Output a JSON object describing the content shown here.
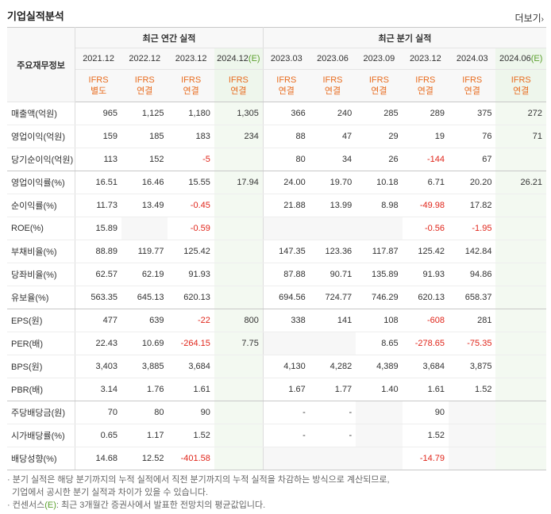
{
  "header": {
    "title": "기업실적분석",
    "more_label": "더보기"
  },
  "table": {
    "row_header_label": "주요재무정보",
    "group_annual": "최근 연간 실적",
    "group_quarter": "최근 분기 실적",
    "periods": [
      "2021.12",
      "2022.12",
      "2023.12",
      "2024.12",
      "2023.03",
      "2023.06",
      "2023.09",
      "2023.12",
      "2024.03",
      "2024.06"
    ],
    "estimate_mark": "(E)",
    "ifrs_label": "IFRS",
    "basis": [
      "별도",
      "연결",
      "연결",
      "연결",
      "연결",
      "연결",
      "연결",
      "연결",
      "연결",
      "연결"
    ],
    "rows": [
      {
        "label": "매출액(억원)",
        "values": [
          "965",
          "1,125",
          "1,180",
          "1,305",
          "366",
          "240",
          "285",
          "289",
          "375",
          "272"
        ]
      },
      {
        "label": "영업이익(억원)",
        "values": [
          "159",
          "185",
          "183",
          "234",
          "88",
          "47",
          "29",
          "19",
          "76",
          "71"
        ]
      },
      {
        "label": "당기순이익(억원)",
        "values": [
          "113",
          "152",
          "-5",
          "",
          "80",
          "34",
          "26",
          "-144",
          "67",
          ""
        ]
      },
      {
        "label": "영업이익률(%)",
        "values": [
          "16.51",
          "16.46",
          "15.55",
          "17.94",
          "24.00",
          "19.70",
          "10.18",
          "6.71",
          "20.20",
          "26.21"
        ]
      },
      {
        "label": "순이익률(%)",
        "values": [
          "11.73",
          "13.49",
          "-0.45",
          "",
          "21.88",
          "13.99",
          "8.98",
          "-49.98",
          "17.82",
          ""
        ]
      },
      {
        "label": "ROE(%)",
        "values": [
          "15.89",
          "",
          "-0.59",
          "",
          "",
          "",
          "",
          "-0.56",
          "-1.95",
          ""
        ]
      },
      {
        "label": "부채비율(%)",
        "values": [
          "88.89",
          "119.77",
          "125.42",
          "",
          "147.35",
          "123.36",
          "117.87",
          "125.42",
          "142.84",
          ""
        ]
      },
      {
        "label": "당좌비율(%)",
        "values": [
          "62.57",
          "62.19",
          "91.93",
          "",
          "87.88",
          "90.71",
          "135.89",
          "91.93",
          "94.86",
          ""
        ]
      },
      {
        "label": "유보율(%)",
        "values": [
          "563.35",
          "645.13",
          "620.13",
          "",
          "694.56",
          "724.77",
          "746.29",
          "620.13",
          "658.37",
          ""
        ]
      },
      {
        "label": "EPS(원)",
        "values": [
          "477",
          "639",
          "-22",
          "800",
          "338",
          "141",
          "108",
          "-608",
          "281",
          ""
        ]
      },
      {
        "label": "PER(배)",
        "values": [
          "22.43",
          "10.69",
          "-264.15",
          "7.75",
          "",
          "",
          "8.65",
          "-278.65",
          "-75.35",
          ""
        ]
      },
      {
        "label": "BPS(원)",
        "values": [
          "3,403",
          "3,885",
          "3,684",
          "",
          "4,130",
          "4,282",
          "4,389",
          "3,684",
          "3,875",
          ""
        ]
      },
      {
        "label": "PBR(배)",
        "values": [
          "3.14",
          "1.76",
          "1.61",
          "",
          "1.67",
          "1.77",
          "1.40",
          "1.61",
          "1.52",
          ""
        ]
      },
      {
        "label": "주당배당금(원)",
        "values": [
          "70",
          "80",
          "90",
          "",
          "-",
          "-",
          "",
          "90",
          "",
          ""
        ]
      },
      {
        "label": "시가배당률(%)",
        "values": [
          "0.65",
          "1.17",
          "1.52",
          "",
          "-",
          "-",
          "",
          "1.52",
          "",
          ""
        ]
      },
      {
        "label": "배당성향(%)",
        "values": [
          "14.68",
          "12.52",
          "-401.58",
          "",
          "",
          "",
          "",
          "-14.79",
          "",
          ""
        ]
      }
    ]
  },
  "notes": {
    "line1": "· 분기 실적은 해당 분기까지의 누적 실적에서 직전 분기까지의 누적 실적을 차감하는 방식으로 계산되므로,",
    "line2": "기업에서 공시한 분기 실적과 차이가 있을 수 있습니다.",
    "line3_prefix": "· 컨센서스",
    "line3_mark": "(E)",
    "line3_suffix": ": 최근 3개월간 증권사에서 발표한 전망치의 평균값입니다."
  },
  "colors": {
    "ifrs_orange": "#e86c1f",
    "negative_red": "#e0261b",
    "estimate_green": "#5aa02c",
    "estimate_bg": "#f3f9f1"
  }
}
